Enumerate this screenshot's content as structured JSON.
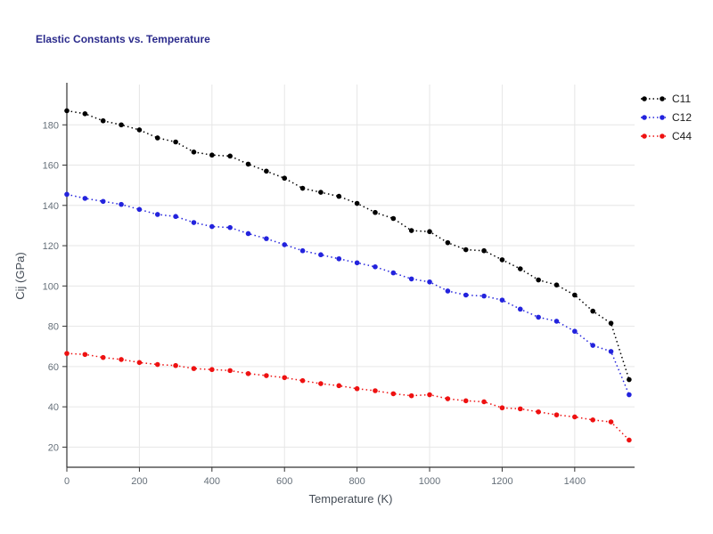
{
  "chart_data": {
    "type": "line",
    "title": "Elastic Constants vs. Temperature",
    "xlabel": "Temperature (K)",
    "ylabel": "Cij (GPa)",
    "line_style": "dotted",
    "marker": "circle",
    "grid": true,
    "legend_position": "top-right-outside",
    "xlim": [
      0,
      1565
    ],
    "ylim": [
      10,
      200
    ],
    "xticks": [
      0,
      200,
      400,
      600,
      800,
      1000,
      1200,
      1400
    ],
    "yticks": [
      20,
      40,
      60,
      80,
      100,
      120,
      140,
      160,
      180
    ],
    "x": [
      0,
      50,
      100,
      150,
      200,
      250,
      300,
      350,
      400,
      450,
      500,
      550,
      600,
      650,
      700,
      750,
      800,
      850,
      900,
      950,
      1000,
      1050,
      1100,
      1150,
      1200,
      1250,
      1300,
      1350,
      1400,
      1450,
      1500,
      1550
    ],
    "series": [
      {
        "name": "C11",
        "color": "#000000",
        "values": [
          187,
          185.5,
          182,
          180,
          177.5,
          173.5,
          171.5,
          166.5,
          165,
          164.5,
          160.5,
          157,
          153.5,
          148.5,
          146.5,
          144.5,
          141,
          136.5,
          133.5,
          127.5,
          127,
          121.5,
          118,
          117.5,
          113,
          108.5,
          103,
          100.5,
          95.5,
          87.5,
          81.5,
          53.5
        ]
      },
      {
        "name": "C12",
        "color": "#2323dd",
        "values": [
          145.5,
          143.5,
          142,
          140.5,
          138,
          135.5,
          134.5,
          131.5,
          129.5,
          129,
          126,
          123.5,
          120.5,
          117.5,
          115.5,
          113.5,
          111.5,
          109.5,
          106.5,
          103.5,
          102,
          97.5,
          95.5,
          95,
          93,
          88.5,
          84.5,
          82.5,
          77.5,
          70.5,
          67.5,
          46
        ]
      },
      {
        "name": "C44",
        "color": "#ee1111",
        "values": [
          66.5,
          66,
          64.5,
          63.5,
          62,
          61,
          60.5,
          59,
          58.5,
          58,
          56.5,
          55.5,
          54.5,
          53,
          51.5,
          50.5,
          49,
          48,
          46.5,
          45.5,
          46,
          44,
          43,
          42.5,
          39.5,
          39,
          37.5,
          36,
          35,
          33.5,
          32.5,
          23.5
        ]
      }
    ],
    "colors": {
      "title": "#2b2b8c",
      "axis_label": "#444c56",
      "tick_label": "#66707a",
      "grid": "#e6e6e6",
      "spine": "#333333"
    }
  }
}
